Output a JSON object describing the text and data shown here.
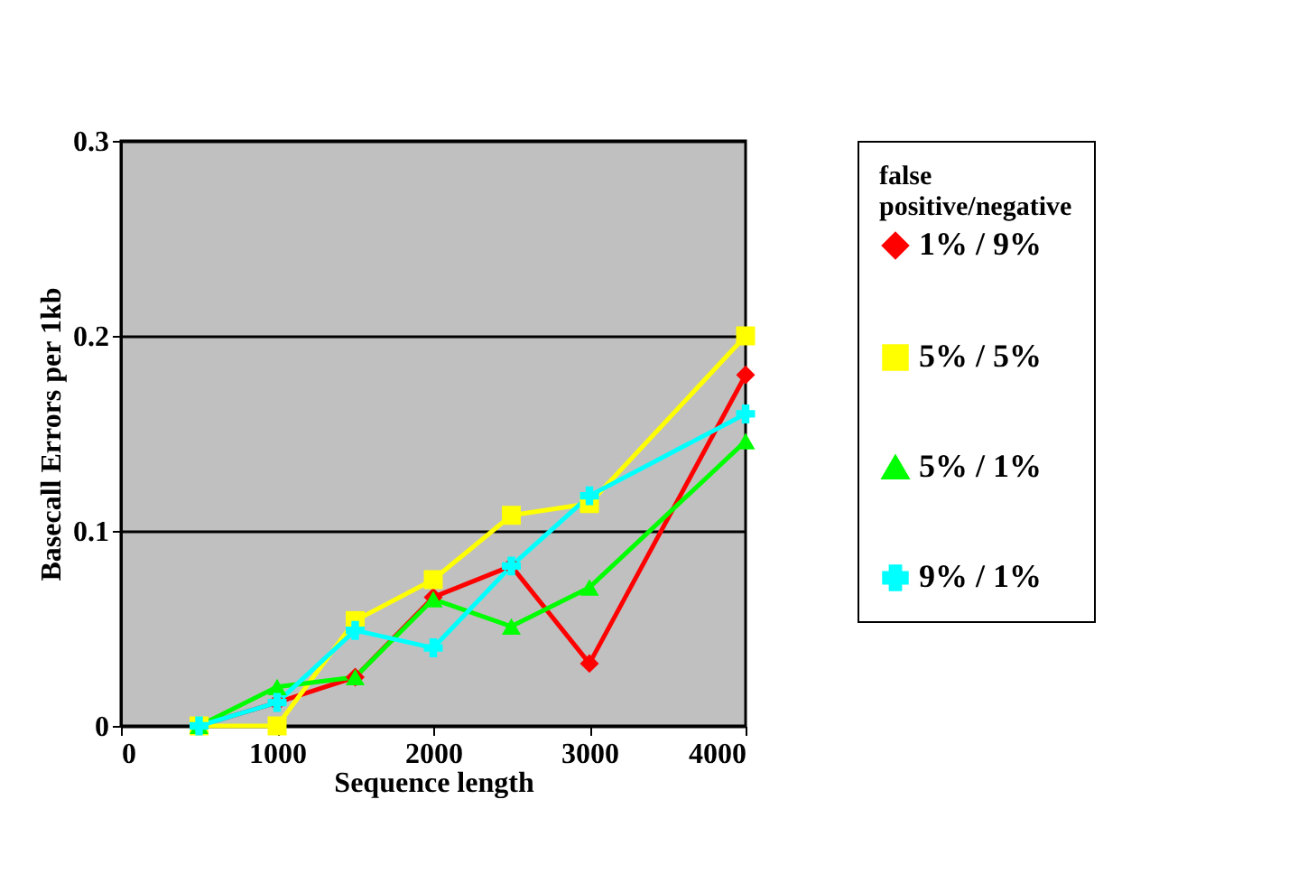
{
  "chart_data": {
    "type": "line",
    "xlabel": "Sequence length",
    "ylabel": "Basecall Errors per 1kb",
    "legend_title": "false positive/negative",
    "x": [
      500,
      1000,
      1500,
      2000,
      2500,
      3000,
      4000
    ],
    "series": [
      {
        "name": "1% / 9%",
        "color": "#ff0000",
        "marker": "diamond",
        "values": [
          0,
          0.012,
          0.025,
          0.066,
          0.082,
          0.032,
          0.18
        ]
      },
      {
        "name": "5% / 5%",
        "color": "#ffff00",
        "marker": "square",
        "values": [
          0,
          0,
          0.054,
          0.075,
          0.108,
          0.114,
          0.2
        ]
      },
      {
        "name": "5% / 1%",
        "color": "#00ff00",
        "marker": "triangle",
        "values": [
          0,
          0.02,
          0.025,
          0.065,
          0.051,
          0.071,
          0.146
        ]
      },
      {
        "name": "9% / 1%",
        "color": "#00ffff",
        "marker": "cross",
        "values": [
          0,
          0.012,
          0.049,
          0.04,
          0.082,
          0.118,
          0.16
        ]
      }
    ],
    "xlim": [
      0,
      4000
    ],
    "xticks": [
      0,
      1000,
      2000,
      3000,
      4000
    ],
    "ylim": [
      0,
      0.3
    ],
    "yticks": [
      0,
      0.1,
      0.2,
      0.3
    ],
    "grid": "y",
    "legend": "top right",
    "line_style": "solid"
  }
}
